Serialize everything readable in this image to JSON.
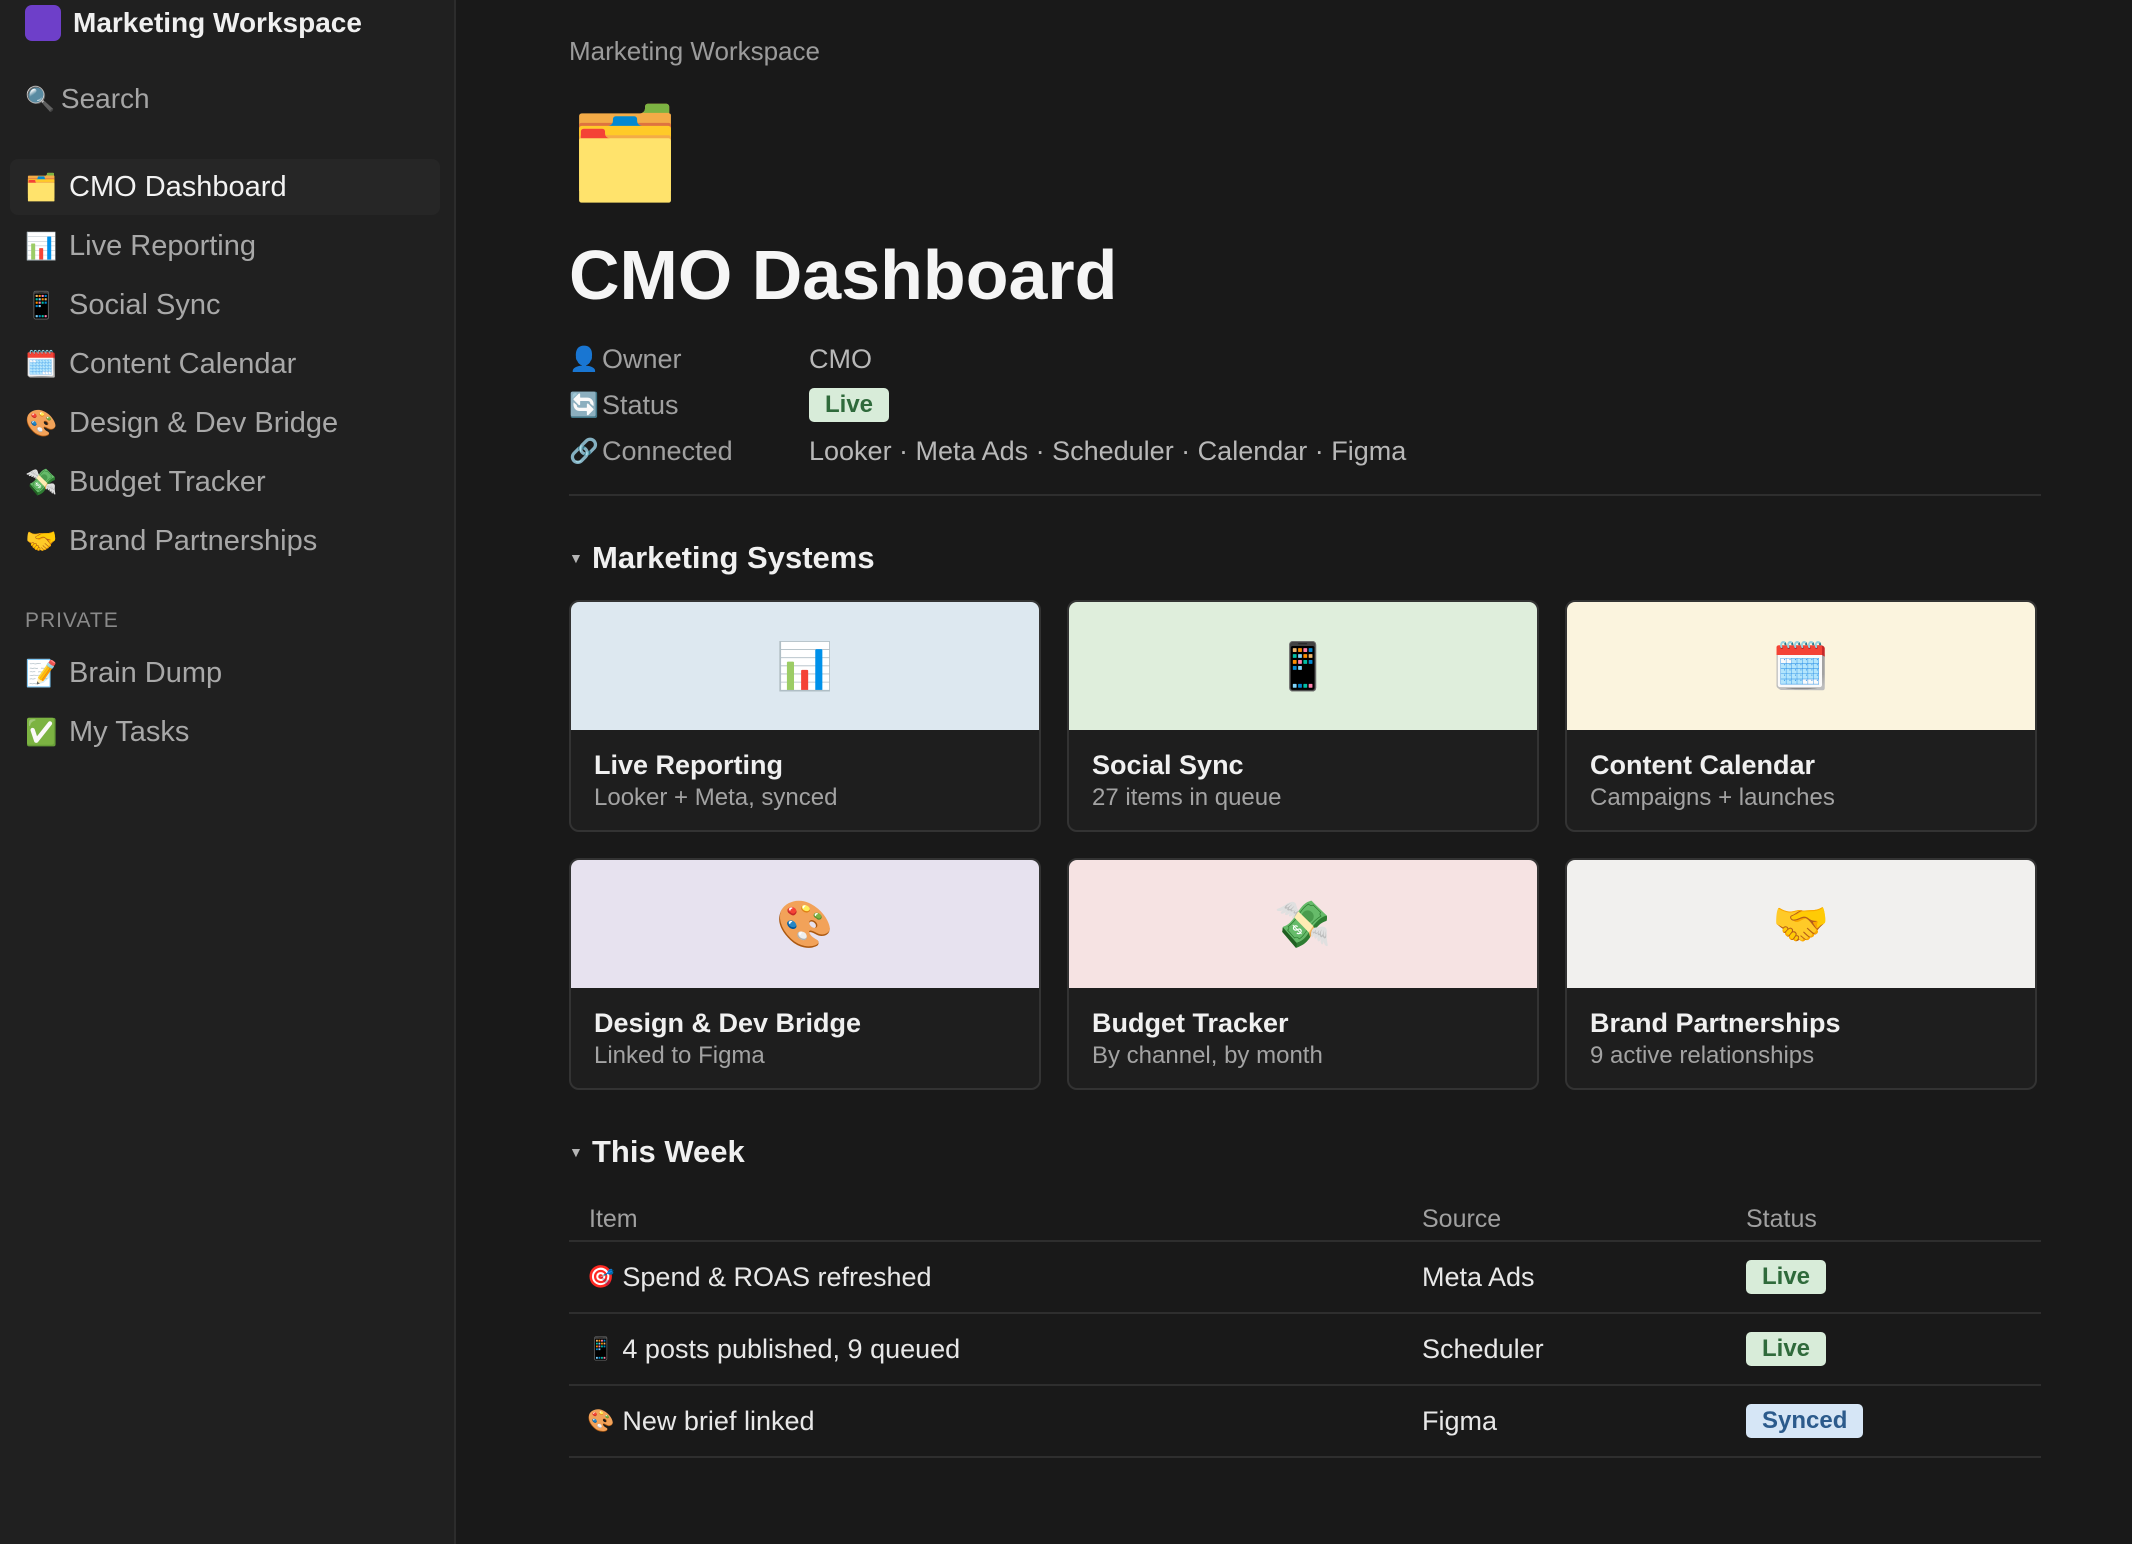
{
  "sidebar": {
    "workspace_name": "Marketing Workspace",
    "search_label": "Search",
    "items": [
      {
        "icon": "🗂️",
        "label": "CMO Dashboard"
      },
      {
        "icon": "📊",
        "label": "Live Reporting"
      },
      {
        "icon": "📱",
        "label": "Social Sync"
      },
      {
        "icon": "🗓️",
        "label": "Content Calendar"
      },
      {
        "icon": "🎨",
        "label": "Design & Dev Bridge"
      },
      {
        "icon": "💸",
        "label": "Budget Tracker"
      },
      {
        "icon": "🤝",
        "label": "Brand Partnerships"
      }
    ],
    "private_label": "PRIVATE",
    "private_items": [
      {
        "icon": "📝",
        "label": "Brain Dump"
      },
      {
        "icon": "✅",
        "label": "My Tasks"
      }
    ]
  },
  "page": {
    "breadcrumb": "Marketing Workspace",
    "icon": "🗂️",
    "title": "CMO Dashboard",
    "properties": {
      "owner": {
        "icon": "👤",
        "key": "Owner",
        "value": "CMO"
      },
      "status": {
        "icon": "🔄",
        "key": "Status",
        "value": "Live"
      },
      "connected": {
        "icon": "🔗",
        "key": "Connected",
        "value": "Looker · Meta Ads · Scheduler · Calendar · Figma"
      }
    }
  },
  "systems": {
    "caret": "▼",
    "title": "Marketing Systems",
    "cards": [
      {
        "icon": "📊",
        "title": "Live Reporting",
        "subtitle": "Looker + Meta, synced",
        "bg": "#dde8f0"
      },
      {
        "icon": "📱",
        "title": "Social Sync",
        "subtitle": "27 items in queue",
        "bg": "#dfeedc"
      },
      {
        "icon": "🗓️",
        "title": "Content Calendar",
        "subtitle": "Campaigns + launches",
        "bg": "#fbf4de"
      },
      {
        "icon": "🎨",
        "title": "Design & Dev Bridge",
        "subtitle": "Linked to Figma",
        "bg": "#e7e2ef"
      },
      {
        "icon": "💸",
        "title": "Budget Tracker",
        "subtitle": "By channel, by month",
        "bg": "#f6e3e3"
      },
      {
        "icon": "🤝",
        "title": "Brand Partnerships",
        "subtitle": "9 active relationships",
        "bg": "#f1f0ee"
      }
    ]
  },
  "week": {
    "caret": "▼",
    "title": "This Week",
    "headers": {
      "item": "Item",
      "source": "Source",
      "status": "Status"
    },
    "rows": [
      {
        "icon": "🎯",
        "item": "Spend & ROAS refreshed",
        "source": "Meta Ads",
        "status": "Live"
      },
      {
        "icon": "📱",
        "item": "4 posts published, 9 queued",
        "source": "Scheduler",
        "status": "Live"
      },
      {
        "icon": "🎨",
        "item": "New brief linked",
        "source": "Figma",
        "status": "Synced"
      }
    ]
  }
}
